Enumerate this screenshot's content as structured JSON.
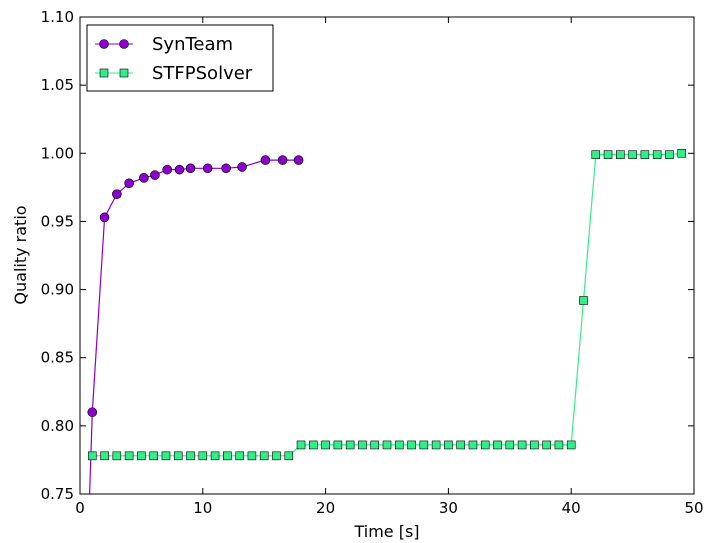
{
  "chart_data": {
    "type": "line",
    "xlabel": "Time [s]",
    "ylabel": "Quality ratio",
    "xlim": [
      0,
      50
    ],
    "ylim": [
      0.75,
      1.1
    ],
    "xticks": [
      "0",
      "10",
      "20",
      "30",
      "40",
      "50"
    ],
    "yticks": [
      "0.75",
      "0.80",
      "0.85",
      "0.90",
      "0.95",
      "1.00",
      "1.05",
      "1.10"
    ],
    "legend_position": "top-left",
    "series": [
      {
        "name": "SynTeam",
        "color": "#8b00cc",
        "marker": "circle",
        "x": [
          0.6,
          1.0,
          2.0,
          3.0,
          4.0,
          5.2,
          6.1,
          7.1,
          8.1,
          9.0,
          10.4,
          11.9,
          13.2,
          15.1,
          16.5,
          17.8
        ],
        "y": [
          0.7,
          0.81,
          0.953,
          0.97,
          0.978,
          0.982,
          0.984,
          0.988,
          0.988,
          0.989,
          0.989,
          0.989,
          0.99,
          0.995,
          0.995,
          0.995
        ]
      },
      {
        "name": "STFPSolver",
        "color": "#33ee88",
        "marker": "square",
        "x": [
          1,
          2,
          3,
          4,
          5,
          6,
          7,
          8,
          9,
          10,
          11,
          12,
          13,
          14,
          15,
          16,
          17,
          18,
          19,
          20,
          21,
          22,
          23,
          24,
          25,
          26,
          27,
          28,
          29,
          30,
          31,
          32,
          33,
          34,
          35,
          36,
          37,
          38,
          39,
          40,
          41,
          42,
          43,
          44,
          45,
          46,
          47,
          48,
          49
        ],
        "y": [
          0.778,
          0.778,
          0.778,
          0.778,
          0.778,
          0.778,
          0.778,
          0.778,
          0.778,
          0.778,
          0.778,
          0.778,
          0.778,
          0.778,
          0.778,
          0.778,
          0.778,
          0.786,
          0.786,
          0.786,
          0.786,
          0.786,
          0.786,
          0.786,
          0.786,
          0.786,
          0.786,
          0.786,
          0.786,
          0.786,
          0.786,
          0.786,
          0.786,
          0.786,
          0.786,
          0.786,
          0.786,
          0.786,
          0.786,
          0.786,
          0.892,
          0.999,
          0.999,
          0.999,
          0.999,
          0.999,
          0.999,
          0.999,
          1.0
        ]
      }
    ]
  }
}
